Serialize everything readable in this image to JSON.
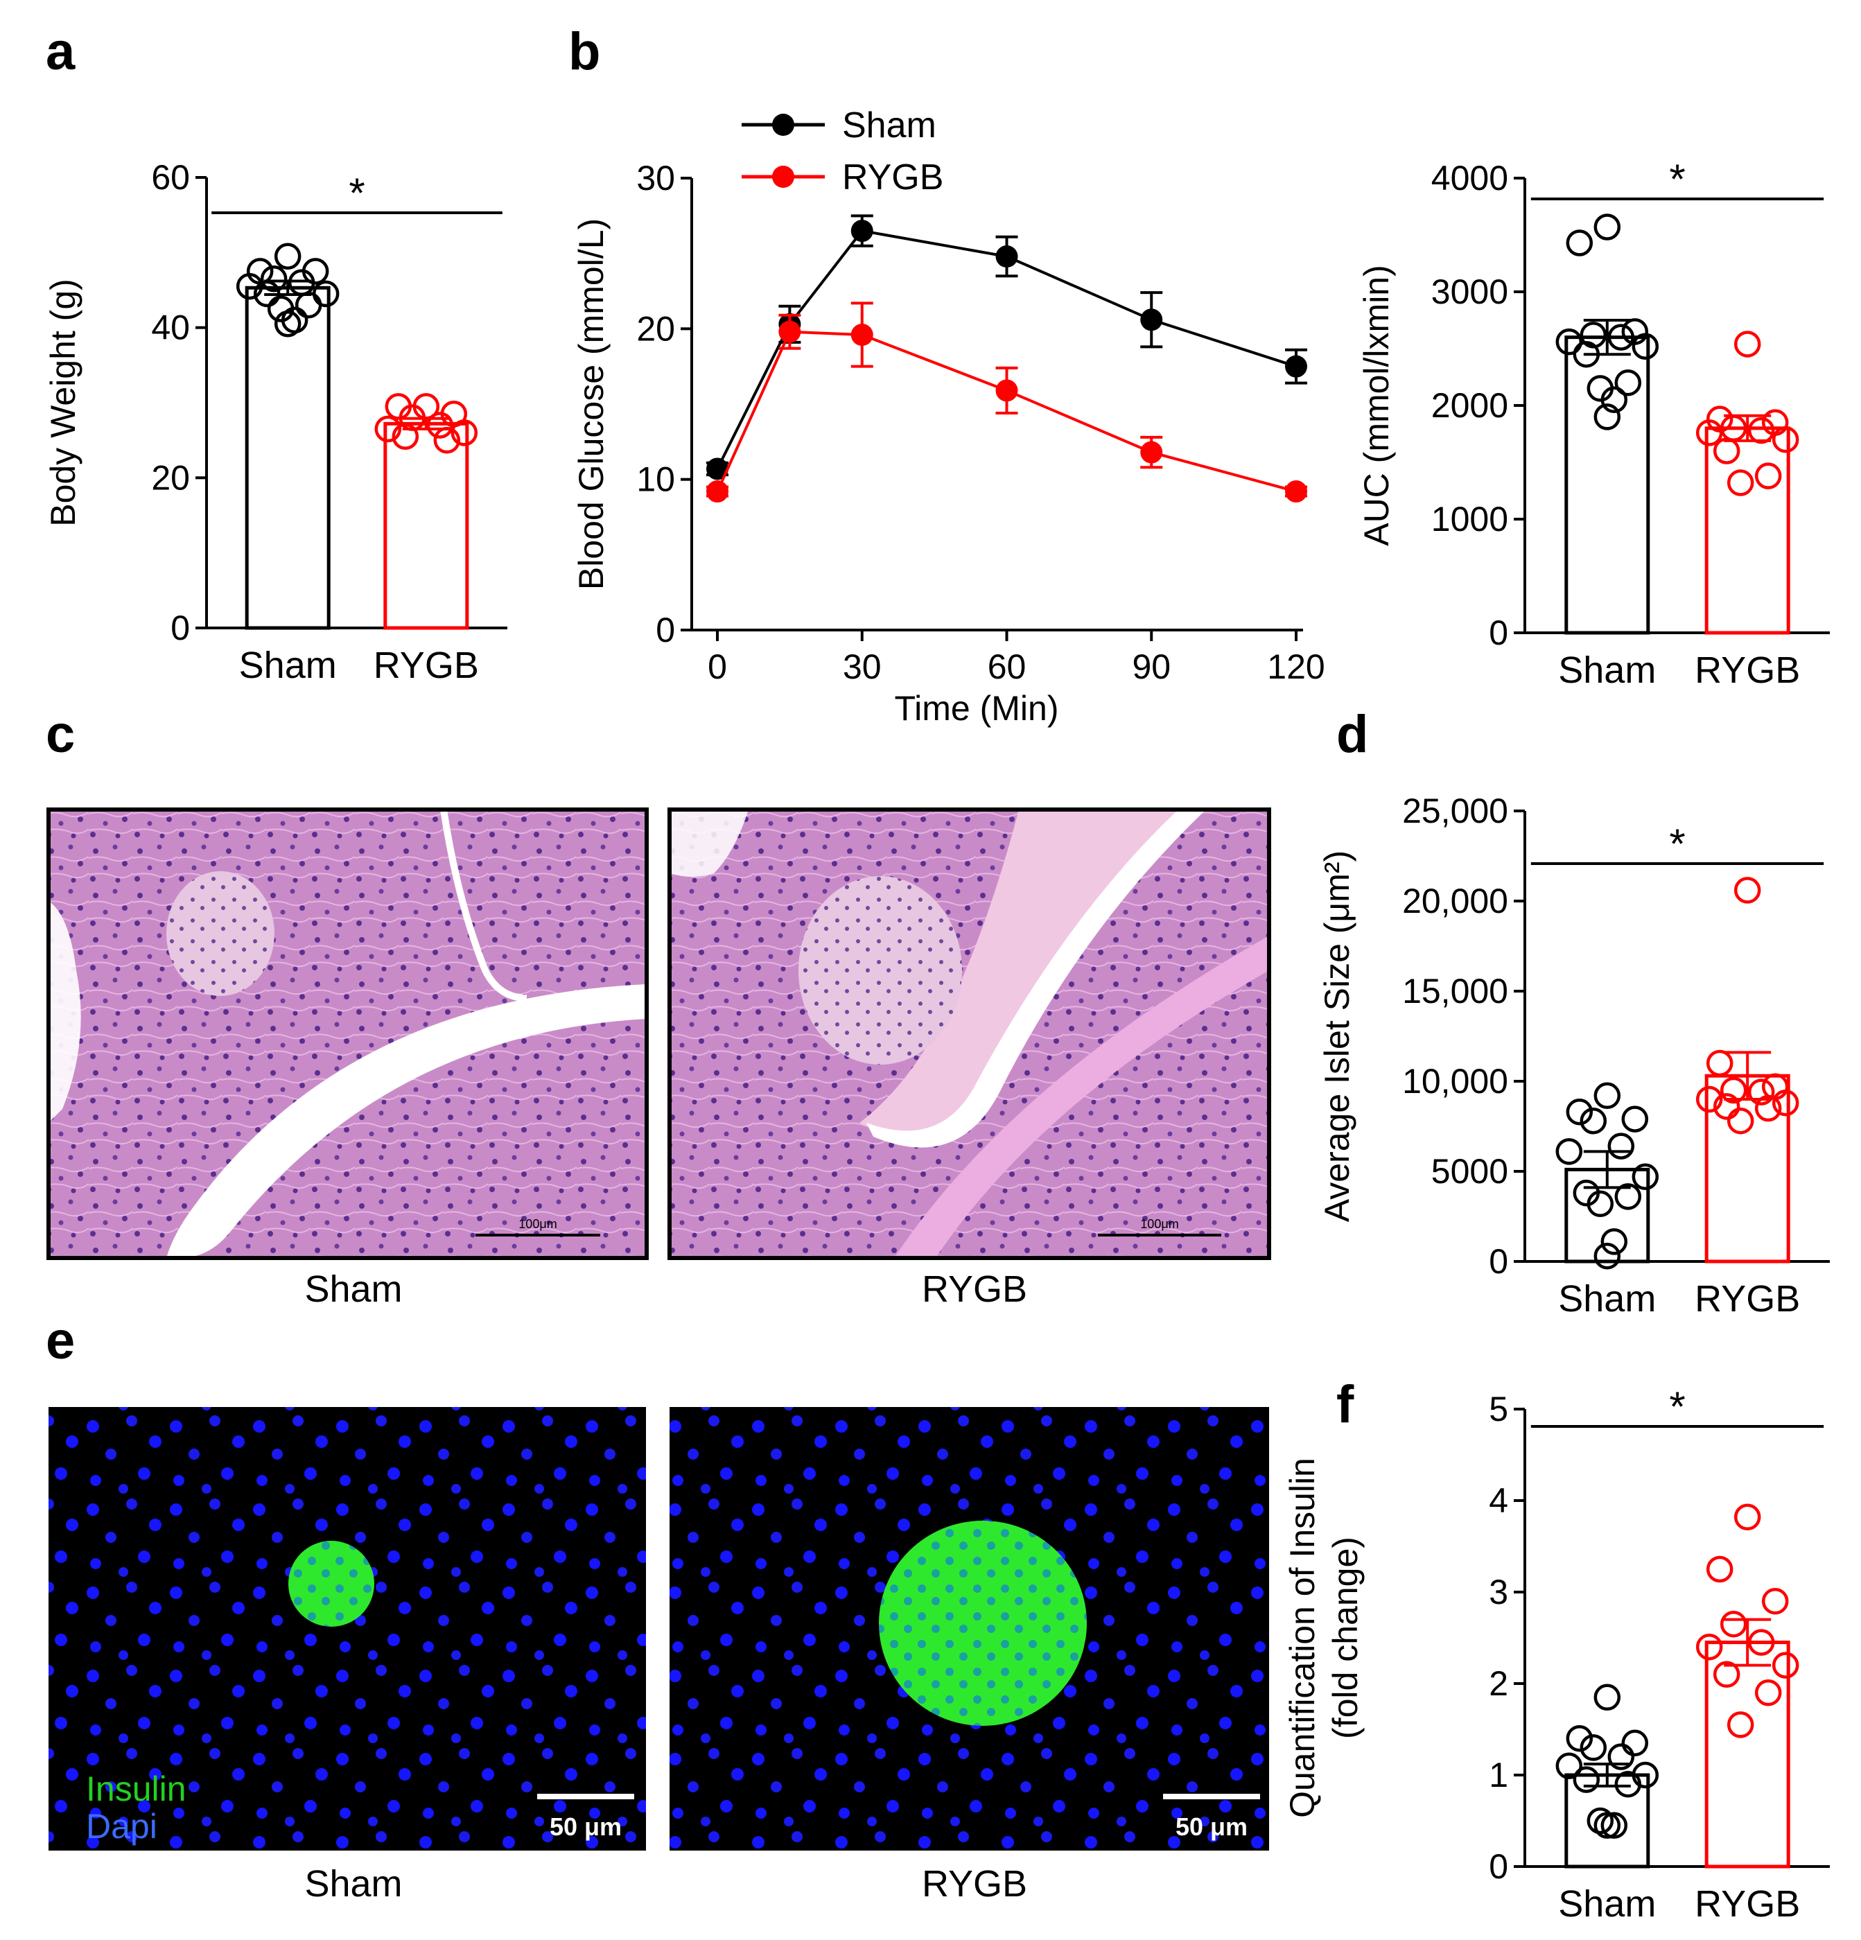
{
  "colors": {
    "sham": "#000000",
    "rygb": "#ff0000",
    "he_bg": "#c98bc8",
    "if_bg": "#000000",
    "nucleus": "#1515ff",
    "insulin": "#2ee82e"
  },
  "panels": {
    "a": {
      "letter": "a"
    },
    "b": {
      "letter": "b"
    },
    "c": {
      "letter": "c",
      "captions": [
        "Sham",
        "RYGB"
      ],
      "scalebar": "100μm"
    },
    "d": {
      "letter": "d"
    },
    "e": {
      "letter": "e",
      "captions": [
        "Sham",
        "RYGB"
      ],
      "scalebar": "50 μm",
      "legend": [
        "Insulin",
        "Dapi"
      ]
    },
    "f": {
      "letter": "f"
    }
  },
  "chart_data": [
    {
      "id": "a",
      "type": "bar",
      "categories": [
        "Sham",
        "RYGB"
      ],
      "values": [
        45.3,
        27.2
      ],
      "sem": [
        0.9,
        0.7
      ],
      "points": [
        [
          49.5,
          47.5,
          47.5,
          46.5,
          46,
          45.5,
          44.5,
          44.5,
          43,
          42.5,
          41,
          40.5
        ],
        [
          29.5,
          29.5,
          28.5,
          28,
          27,
          26.5,
          26,
          25.5,
          25
        ]
      ],
      "ylabel": "Body Weight  (g)",
      "ylim": [
        0,
        60
      ],
      "yticks": [
        0,
        20,
        40,
        60
      ],
      "significance": "*"
    },
    {
      "id": "b_curve",
      "type": "line",
      "x": [
        0,
        15,
        30,
        60,
        90,
        120
      ],
      "xticks": [
        0,
        30,
        60,
        90,
        120
      ],
      "series": [
        {
          "name": "Sham",
          "values": [
            10.7,
            20.3,
            26.5,
            24.8,
            20.6,
            17.5
          ],
          "sem": [
            0.4,
            1.2,
            1.0,
            1.3,
            1.8,
            1.1
          ]
        },
        {
          "name": "RYGB",
          "values": [
            9.2,
            19.8,
            19.6,
            15.9,
            11.8,
            9.2
          ],
          "sem": [
            0.3,
            1.1,
            2.1,
            1.5,
            1.0,
            0.3
          ]
        }
      ],
      "xlabel": "Time (Min)",
      "ylabel": "Blood Glucose (mmol/L)",
      "ylim": [
        0,
        30
      ],
      "yticks": [
        0,
        10,
        20,
        30
      ],
      "legend": "top-left"
    },
    {
      "id": "b_auc",
      "type": "bar",
      "categories": [
        "Sham",
        "RYGB"
      ],
      "values": [
        2600,
        1800
      ],
      "sem": [
        150,
        110
      ],
      "points": [
        [
          3570,
          3430,
          2650,
          2620,
          2600,
          2560,
          2520,
          2450,
          2200,
          2150,
          2050,
          1900
        ],
        [
          2540,
          1880,
          1850,
          1800,
          1780,
          1760,
          1700,
          1600,
          1380,
          1320
        ]
      ],
      "ylabel": "AUC (mmol/lxmin)",
      "ylim": [
        0,
        4000
      ],
      "yticks": [
        0,
        1000,
        2000,
        3000,
        4000
      ],
      "significance": "*"
    },
    {
      "id": "d",
      "type": "bar",
      "categories": [
        "Sham",
        "RYGB"
      ],
      "values": [
        5100,
        10300
      ],
      "sem": [
        1000,
        1300
      ],
      "points": [
        [
          9200,
          8300,
          7900,
          7800,
          6400,
          6100,
          4700,
          3800,
          3600,
          3200,
          1100,
          300
        ],
        [
          20600,
          11000,
          9700,
          9500,
          9400,
          9000,
          8800,
          8600,
          8500,
          7800
        ]
      ],
      "ylabel": "Average Islet Size (μm²)",
      "ylim": [
        0,
        25000
      ],
      "yticks": [
        0,
        5000,
        10000,
        15000,
        20000,
        25000
      ],
      "ytick_labels": [
        "0",
        "5000",
        "10,000",
        "15,000",
        "20,000",
        "25,000"
      ],
      "significance": "*"
    },
    {
      "id": "f",
      "type": "bar",
      "categories": [
        "Sham",
        "RYGB"
      ],
      "values": [
        1.0,
        2.45
      ],
      "sem": [
        0.12,
        0.25
      ],
      "points": [
        [
          1.85,
          1.4,
          1.35,
          1.3,
          1.2,
          1.1,
          1.0,
          0.95,
          0.9,
          0.5,
          0.45,
          0.45
        ],
        [
          3.82,
          3.25,
          2.9,
          2.65,
          2.45,
          2.4,
          2.2,
          2.1,
          1.9,
          1.55
        ]
      ],
      "ylabel": "Quantification of Insulin",
      "ylabel2": "(fold change)",
      "ylim": [
        0,
        5
      ],
      "yticks": [
        0,
        1,
        2,
        3,
        4,
        5
      ],
      "significance": "*"
    }
  ]
}
